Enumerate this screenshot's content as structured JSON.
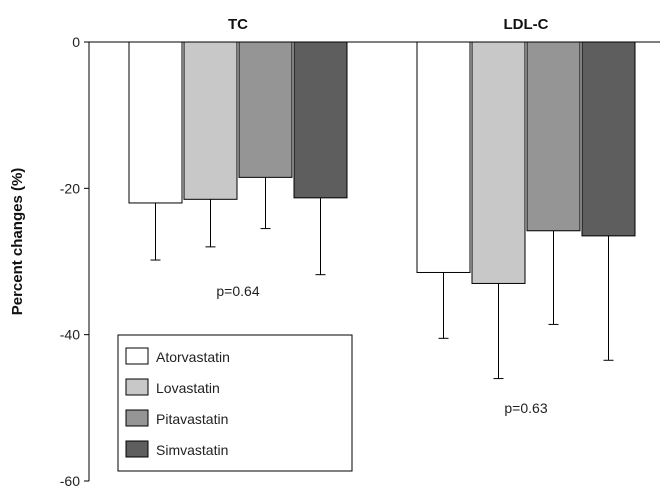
{
  "chart_data": {
    "type": "bar",
    "categories": [
      "TC",
      "LDL-C"
    ],
    "ylabel": "Percent changes (%)",
    "ylim": [
      -60,
      0
    ],
    "yticks": [
      0,
      -20,
      -40,
      -60
    ],
    "series": [
      {
        "name": "Atorvastatin",
        "values": [
          -22.0,
          -31.5
        ],
        "errors": [
          7.8,
          9.0
        ],
        "color": "#ffffff"
      },
      {
        "name": "Lovastatin",
        "values": [
          -21.5,
          -33.0
        ],
        "errors": [
          6.5,
          13.0
        ],
        "color": "#c8c8c8"
      },
      {
        "name": "Pitavastatin",
        "values": [
          -18.5,
          -25.8
        ],
        "errors": [
          7.0,
          12.8
        ],
        "color": "#959595"
      },
      {
        "name": "Simvastatin",
        "values": [
          -21.3,
          -26.5
        ],
        "errors": [
          10.5,
          17.0
        ],
        "color": "#5e5e5e"
      }
    ],
    "annotations": [
      {
        "category": "TC",
        "text": "p=0.64",
        "y": -34
      },
      {
        "category": "LDL-C",
        "text": "p=0.63",
        "y": -50
      }
    ],
    "legend": {
      "position": "bottom-left"
    },
    "grid": false
  }
}
